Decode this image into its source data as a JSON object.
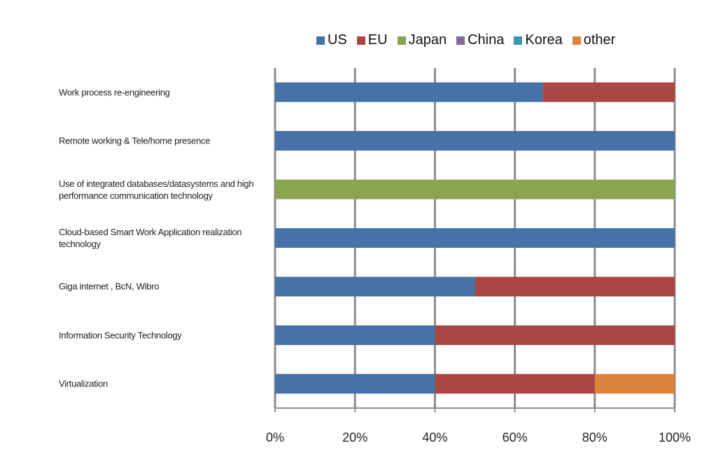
{
  "chart_data": {
    "type": "stacked-bar-horizontal",
    "categories": [
      "Work process re-engineering",
      "Remote working & Tele/home presence",
      "Use of integrated databases/datasystems and high performance communication technology",
      "Cloud-based Smart Work Application realization technology",
      "Giga internet , BcN, Wibro",
      "Information Security Technology",
      "Virtualization"
    ],
    "series": [
      {
        "name": "US",
        "color": "#4572a7",
        "values": [
          67,
          100,
          0,
          100,
          50,
          40,
          40
        ]
      },
      {
        "name": "EU",
        "color": "#aa4643",
        "values": [
          33,
          0,
          0,
          0,
          50,
          60,
          40
        ]
      },
      {
        "name": "Japan",
        "color": "#89a54e",
        "values": [
          0,
          0,
          100,
          0,
          0,
          0,
          0
        ]
      },
      {
        "name": "China",
        "color": "#80699b",
        "values": [
          0,
          0,
          0,
          0,
          0,
          0,
          0
        ]
      },
      {
        "name": "Korea",
        "color": "#3d96ae",
        "values": [
          0,
          0,
          0,
          0,
          0,
          0,
          0
        ]
      },
      {
        "name": "other",
        "color": "#db843d",
        "values": [
          0,
          0,
          0,
          0,
          0,
          0,
          20
        ]
      }
    ],
    "xlim": [
      0,
      100
    ],
    "xticks": [
      {
        "value": 0,
        "label": "0%"
      },
      {
        "value": 20,
        "label": "20%"
      },
      {
        "value": 40,
        "label": "40%"
      },
      {
        "value": 60,
        "label": "60%"
      },
      {
        "value": 80,
        "label": "80%"
      },
      {
        "value": 100,
        "label": "100%"
      }
    ],
    "grid": true,
    "legend": "top"
  }
}
